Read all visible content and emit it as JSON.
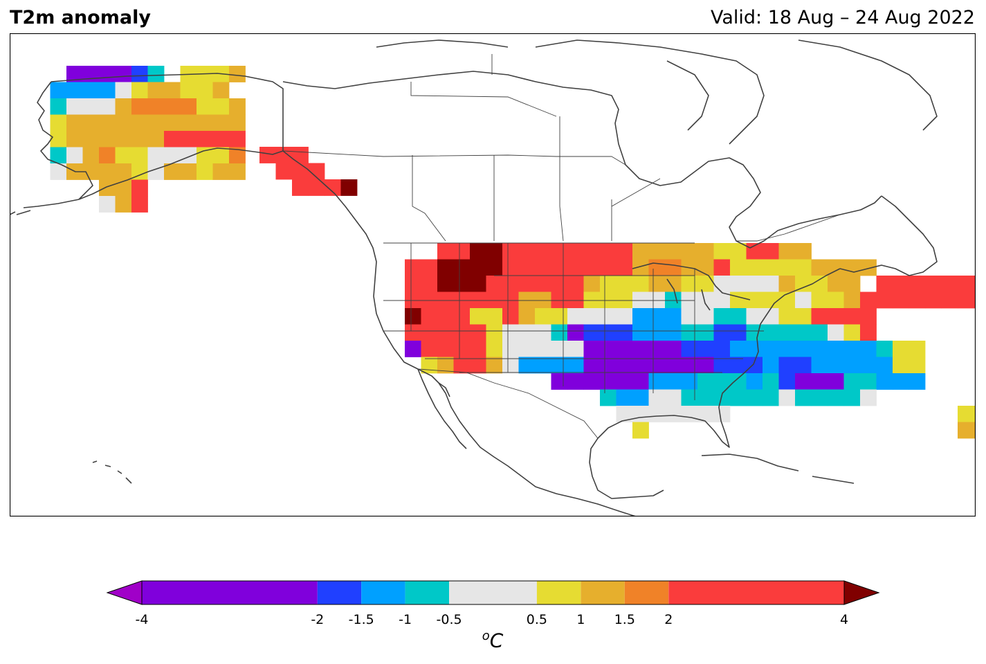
{
  "header": {
    "title": "T2m anomaly",
    "valid": "Valid: 18 Aug – 24 Aug 2022"
  },
  "colorbar": {
    "unit_symbol": "o",
    "unit_letter": "C",
    "ticks": [
      "-4",
      "-2",
      "-1.5",
      "-1",
      "-0.5",
      "0.5",
      "1",
      "1.5",
      "2",
      "4"
    ],
    "boundaries": [
      -4,
      -2,
      -1.5,
      -1,
      -0.5,
      0.5,
      1,
      1.5,
      2,
      4
    ],
    "colors": [
      "#8000dc",
      "#2040ff",
      "#00a0ff",
      "#00c8c8",
      "#e6e6e6",
      "#e6dc32",
      "#e6af2d",
      "#f08228",
      "#fa3c3c"
    ],
    "under_color": "#a000c8",
    "over_color": "#800000"
  },
  "map": {
    "region": "North America",
    "projection": "PlateCarree",
    "border_color": "#404040",
    "legend": {
      "P": "#8000dc",
      "B": "#2040ff",
      "L": "#00a0ff",
      "C": "#00c8c8",
      "G": "#e6e6e6",
      "Y": "#e6dc32",
      "O": "#e6af2d",
      "R": "#f08228",
      "D": "#fa3c3c",
      "M": "#800000",
      "U": "#a000c8"
    },
    "alaska_rows": [
      "..PPPPBC.YYYO",
      ".LLLLGYOOYYO.",
      ".CGGGORRRRYYO",
      ".YOOOOOOOOOOO",
      ".YOOOOOODDDDD",
      ".CGORYYGGGYYR",
      ".GOOOOYGOOYOO",
      "....OOD......",
      "....GOD......"
    ],
    "panhandle_rows": [
      "DDD....",
      ".DDD...",
      "..DDDM."
    ],
    "conus_rows": [
      "....DDMMDDDDDDDDOOOOOYYDDOO........................",
      "..DDMMMMDDDDDDDDORROODYYYYYOOOO.....................",
      "..DDMMMDDDDDDOYYYOOYYGGGGOYYOO.DDDDDDDD............",
      "..DDDDDDDOODDYYYGGCGGGYYYYGYYODDDDDDDD............",
      "..MDDDYYDOYYGGGGLLLGGCCGGYYDDDD....................",
      "..DDDDDYGGGCPBBBLLLCCBBCCCCCGYD..................",
      "..PDDDDYGGGGGPPPPPPBBBLLLLLLLLLCYY...............",
      "...YODDOGLLLLPPPPPPPPBBBLBBLLLLLYY...............",
      "...........PPPPPPLLLCCCLCBPPPCCLLL...............",
      "..............CLLGGCCCCCCGCCCCG...................",
      "...............GGGGGGG..............YY............",
      "................Y...................OO............"
    ]
  }
}
